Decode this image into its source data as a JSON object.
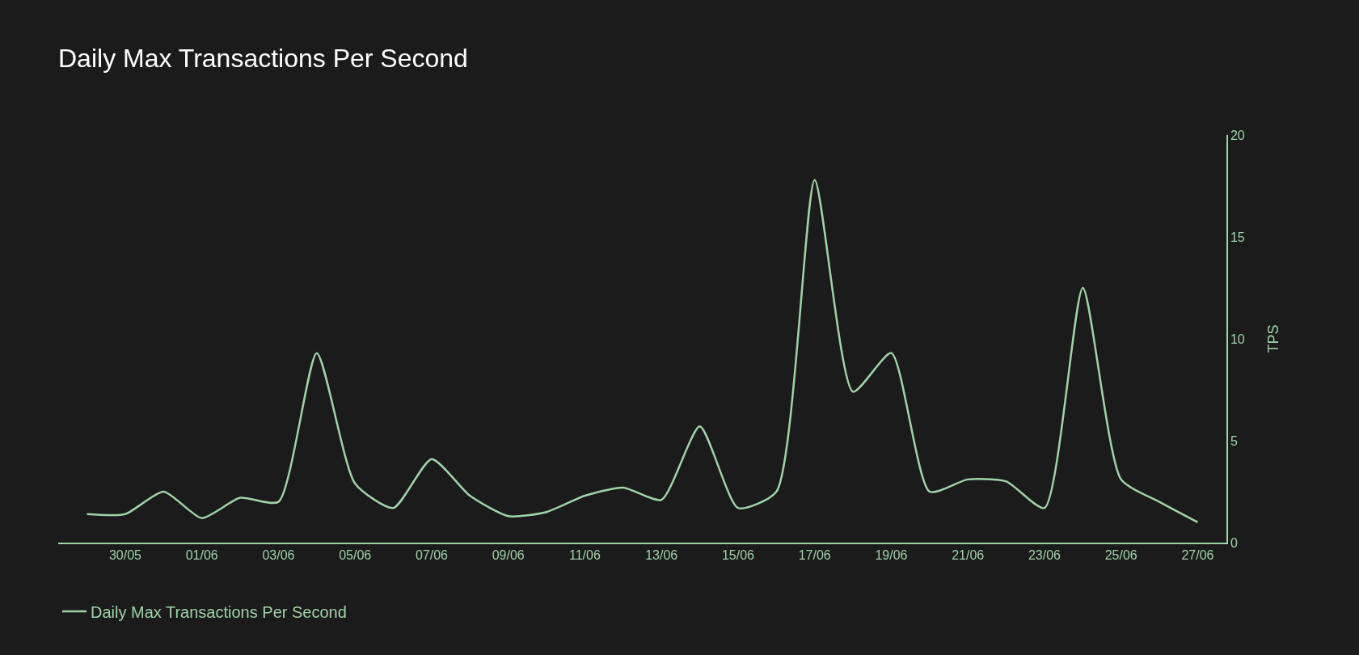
{
  "chart_data": {
    "type": "line",
    "title": "Daily Max Transactions Per Second",
    "ylabel": "TPS",
    "x": [
      "--05-29",
      "--05-30",
      "--05-31",
      "--06-01",
      "--06-02",
      "--06-03",
      "--06-04",
      "--06-05",
      "--06-06",
      "--06-07",
      "--06-08",
      "--06-09",
      "--06-10",
      "--06-11",
      "--06-12",
      "--06-13",
      "--06-14",
      "--06-15",
      "--06-16",
      "--06-17",
      "--06-18",
      "--06-19",
      "--06-20",
      "--06-21",
      "--06-22",
      "--06-23",
      "--06-24",
      "--06-25",
      "--06-26",
      "--06-27"
    ],
    "series": [
      {
        "name": "Daily Max Transactions Per Second",
        "color": "#9fd3a8",
        "values": [
          1.4,
          1.4,
          2.5,
          1.2,
          2.2,
          2.0,
          9.3,
          2.9,
          1.7,
          4.1,
          2.3,
          1.3,
          1.5,
          2.3,
          2.7,
          2.1,
          5.7,
          1.7,
          2.5,
          17.8,
          7.4,
          9.3,
          2.5,
          3.1,
          3.0,
          1.7,
          12.5,
          3.1,
          2.0,
          1.0
        ]
      }
    ],
    "xlim": [
      "--05-28T06:00",
      "--06-27T18:00"
    ],
    "xticks": [
      {
        "value": "--05-30",
        "label": "30/05"
      },
      {
        "value": "--06-01",
        "label": "01/06"
      },
      {
        "value": "--06-03",
        "label": "03/06"
      },
      {
        "value": "--06-05",
        "label": "05/06"
      },
      {
        "value": "--06-07",
        "label": "07/06"
      },
      {
        "value": "--06-09",
        "label": "09/06"
      },
      {
        "value": "--06-11",
        "label": "11/06"
      },
      {
        "value": "--06-13",
        "label": "13/06"
      },
      {
        "value": "--06-15",
        "label": "15/06"
      },
      {
        "value": "--06-17",
        "label": "17/06"
      },
      {
        "value": "--06-19",
        "label": "19/06"
      },
      {
        "value": "--06-21",
        "label": "21/06"
      },
      {
        "value": "--06-23",
        "label": "23/06"
      },
      {
        "value": "--06-25",
        "label": "25/06"
      },
      {
        "value": "--06-27",
        "label": "27/06"
      }
    ],
    "ylim": [
      0,
      20
    ],
    "yticks": [
      0,
      5,
      10,
      15,
      20
    ],
    "grid": false,
    "legend": "bottom left",
    "marker": "none",
    "line_style": "solid"
  }
}
